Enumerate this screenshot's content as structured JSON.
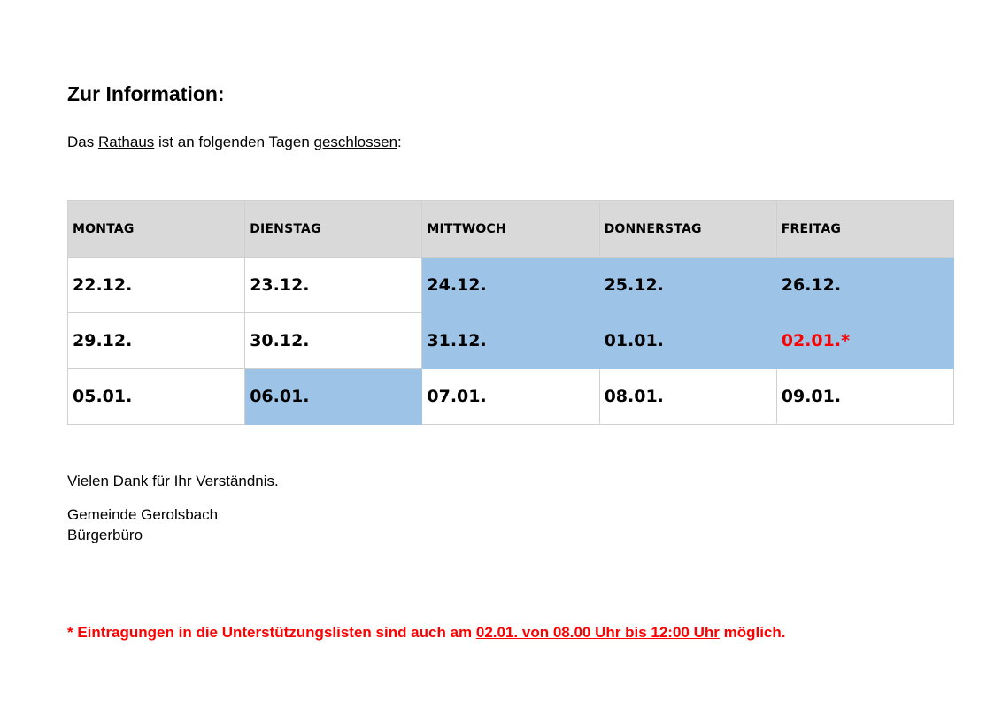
{
  "heading": "Zur Information:",
  "intro": {
    "part1": "Das ",
    "rathaus": "Rathaus",
    "part2": " ist an folgenden Tagen ",
    "geschlossen": "geschlossen",
    "part3": ":"
  },
  "table": {
    "headers": [
      "MONTAG",
      "DIENSTAG",
      "MITTWOCH",
      "DONNERSTAG",
      "FREITAG"
    ],
    "rows": [
      [
        "22.12.",
        "23.12.",
        "24.12.",
        "25.12.",
        "26.12."
      ],
      [
        "29.12.",
        "30.12.",
        "31.12.",
        "01.01.",
        "02.01.*"
      ],
      [
        "05.01.",
        "06.01.",
        "07.01.",
        "08.01.",
        "09.01."
      ]
    ],
    "highlight_color": "#9dc3e6",
    "header_color": "#d9d9d9",
    "note_color": "#ff0000"
  },
  "thanks": "Vielen Dank für Ihr Verständnis.",
  "signature": {
    "line1": "Gemeinde Gerolsbach",
    "line2": "Bürgerbüro"
  },
  "footnote": {
    "part1": "* Eintragungen in die Unterstützungslisten sind auch am ",
    "underlined": "02.01. von 08.00 Uhr bis 12:00 Uhr",
    "part2": " möglich."
  }
}
